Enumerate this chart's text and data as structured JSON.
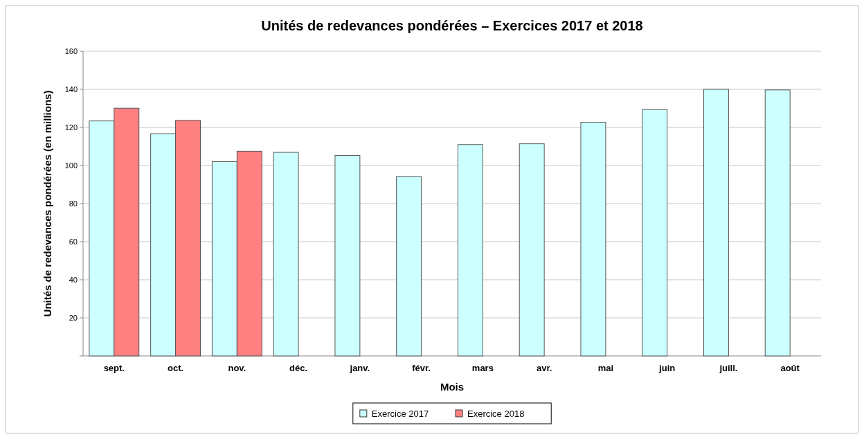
{
  "chart_data": {
    "type": "bar",
    "title": "Unités de redevances pondérées – Exercices 2017 et 2018",
    "xlabel": "Mois",
    "ylabel": "Unités de redevances pondérées (en millions)",
    "categories": [
      "sept.",
      "oct.",
      "nov.",
      "déc.",
      "janv.",
      "févr.",
      "mars",
      "avr.",
      "mai",
      "juin",
      "juill.",
      "août"
    ],
    "series": [
      {
        "name": "Exercice 2017",
        "color": "#ccffff",
        "values": [
          123.4,
          116.7,
          102,
          106.9,
          105.3,
          94.2,
          111,
          111.4,
          122.7,
          129.4,
          140,
          139.7
        ]
      },
      {
        "name": "Exercice 2018",
        "color": "#ff8080",
        "values": [
          130.1,
          123.7,
          107.5,
          null,
          null,
          null,
          null,
          null,
          null,
          null,
          null,
          null
        ]
      }
    ],
    "ylim": [
      0,
      160
    ],
    "yticks": [
      20,
      40,
      60,
      80,
      100,
      120,
      140,
      160
    ],
    "grid": "y",
    "legend": "bottom"
  }
}
